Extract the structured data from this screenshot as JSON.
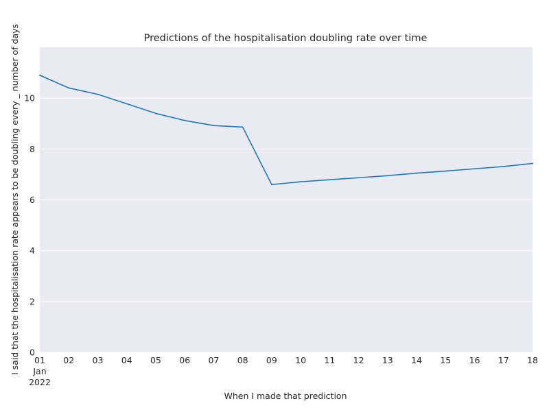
{
  "chart_data": {
    "type": "line",
    "title": "Predictions of the hospitalisation doubling rate over time",
    "xlabel": "When I made that prediction",
    "ylabel": "I said that the hospitalisation rate appears to be doubling every _ number of days",
    "x": [
      "2022-01-01",
      "2022-01-02",
      "2022-01-03",
      "2022-01-04",
      "2022-01-05",
      "2022-01-06",
      "2022-01-07",
      "2022-01-08",
      "2022-01-09",
      "2022-01-10",
      "2022-01-11",
      "2022-01-12",
      "2022-01-13",
      "2022-01-14",
      "2022-01-15",
      "2022-01-16",
      "2022-01-17",
      "2022-01-18"
    ],
    "x_tick_labels": [
      "01",
      "02",
      "03",
      "04",
      "05",
      "06",
      "07",
      "08",
      "09",
      "10",
      "11",
      "12",
      "13",
      "14",
      "15",
      "16",
      "17",
      "18"
    ],
    "x_tick_sublabel": {
      "month": "Jan",
      "year": "2022"
    },
    "series": [
      {
        "name": "",
        "color": "#1f77b4",
        "values": [
          10.9,
          10.4,
          10.15,
          9.78,
          9.4,
          9.12,
          8.92,
          8.86,
          6.6,
          6.71,
          6.79,
          6.87,
          6.95,
          7.05,
          7.13,
          7.22,
          7.31,
          7.43
        ]
      }
    ],
    "yticks": [
      0,
      2,
      4,
      6,
      8,
      10
    ],
    "ylim": [
      0,
      12
    ],
    "grid": true,
    "background": "#eaeaf2",
    "grid_color": "#ffffff",
    "text_color": "#262626"
  }
}
